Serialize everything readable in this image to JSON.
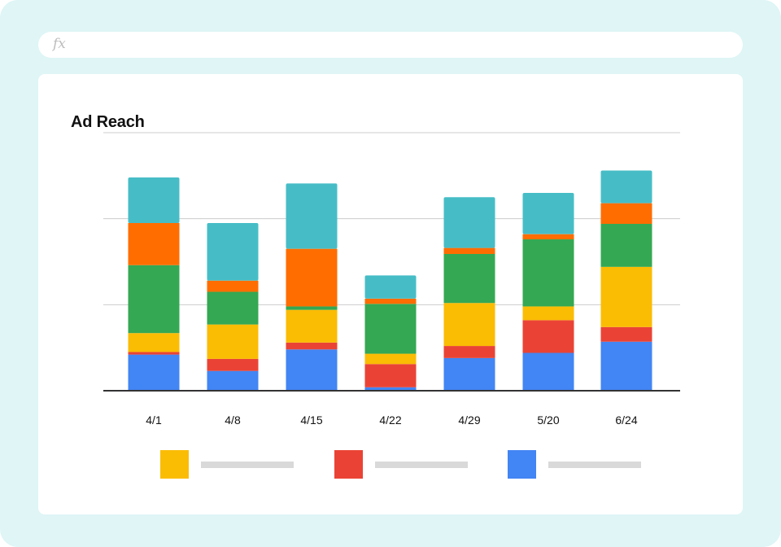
{
  "formula_bar": {
    "icon": "fx"
  },
  "chart_data": {
    "type": "bar",
    "stacked": true,
    "title": "Ad Reach",
    "xlabel": "",
    "ylabel": "",
    "ylim": [
      0,
      300
    ],
    "grid": true,
    "categories": [
      "4/1",
      "4/8",
      "4/15",
      "4/22",
      "4/29",
      "5/20",
      "6/24"
    ],
    "series": [
      {
        "color": "#4285f4",
        "values": [
          42,
          23,
          48,
          4,
          38,
          44,
          57
        ]
      },
      {
        "color": "#ea4335",
        "values": [
          3,
          14,
          8,
          27,
          14,
          38,
          17
        ]
      },
      {
        "color": "#fbbc04",
        "values": [
          22,
          40,
          38,
          12,
          50,
          16,
          70
        ]
      },
      {
        "color": "#34a853",
        "values": [
          79,
          38,
          4,
          58,
          57,
          78,
          50
        ]
      },
      {
        "color": "#ff6d01",
        "values": [
          49,
          13,
          67,
          6,
          7,
          6,
          24
        ]
      },
      {
        "color": "#46bdc6",
        "values": [
          53,
          67,
          76,
          27,
          59,
          48,
          38
        ]
      }
    ],
    "legend": {
      "position": "bottom",
      "items": [
        {
          "color": "#fbbc04"
        },
        {
          "color": "#ea4335"
        },
        {
          "color": "#4285f4"
        }
      ]
    }
  }
}
